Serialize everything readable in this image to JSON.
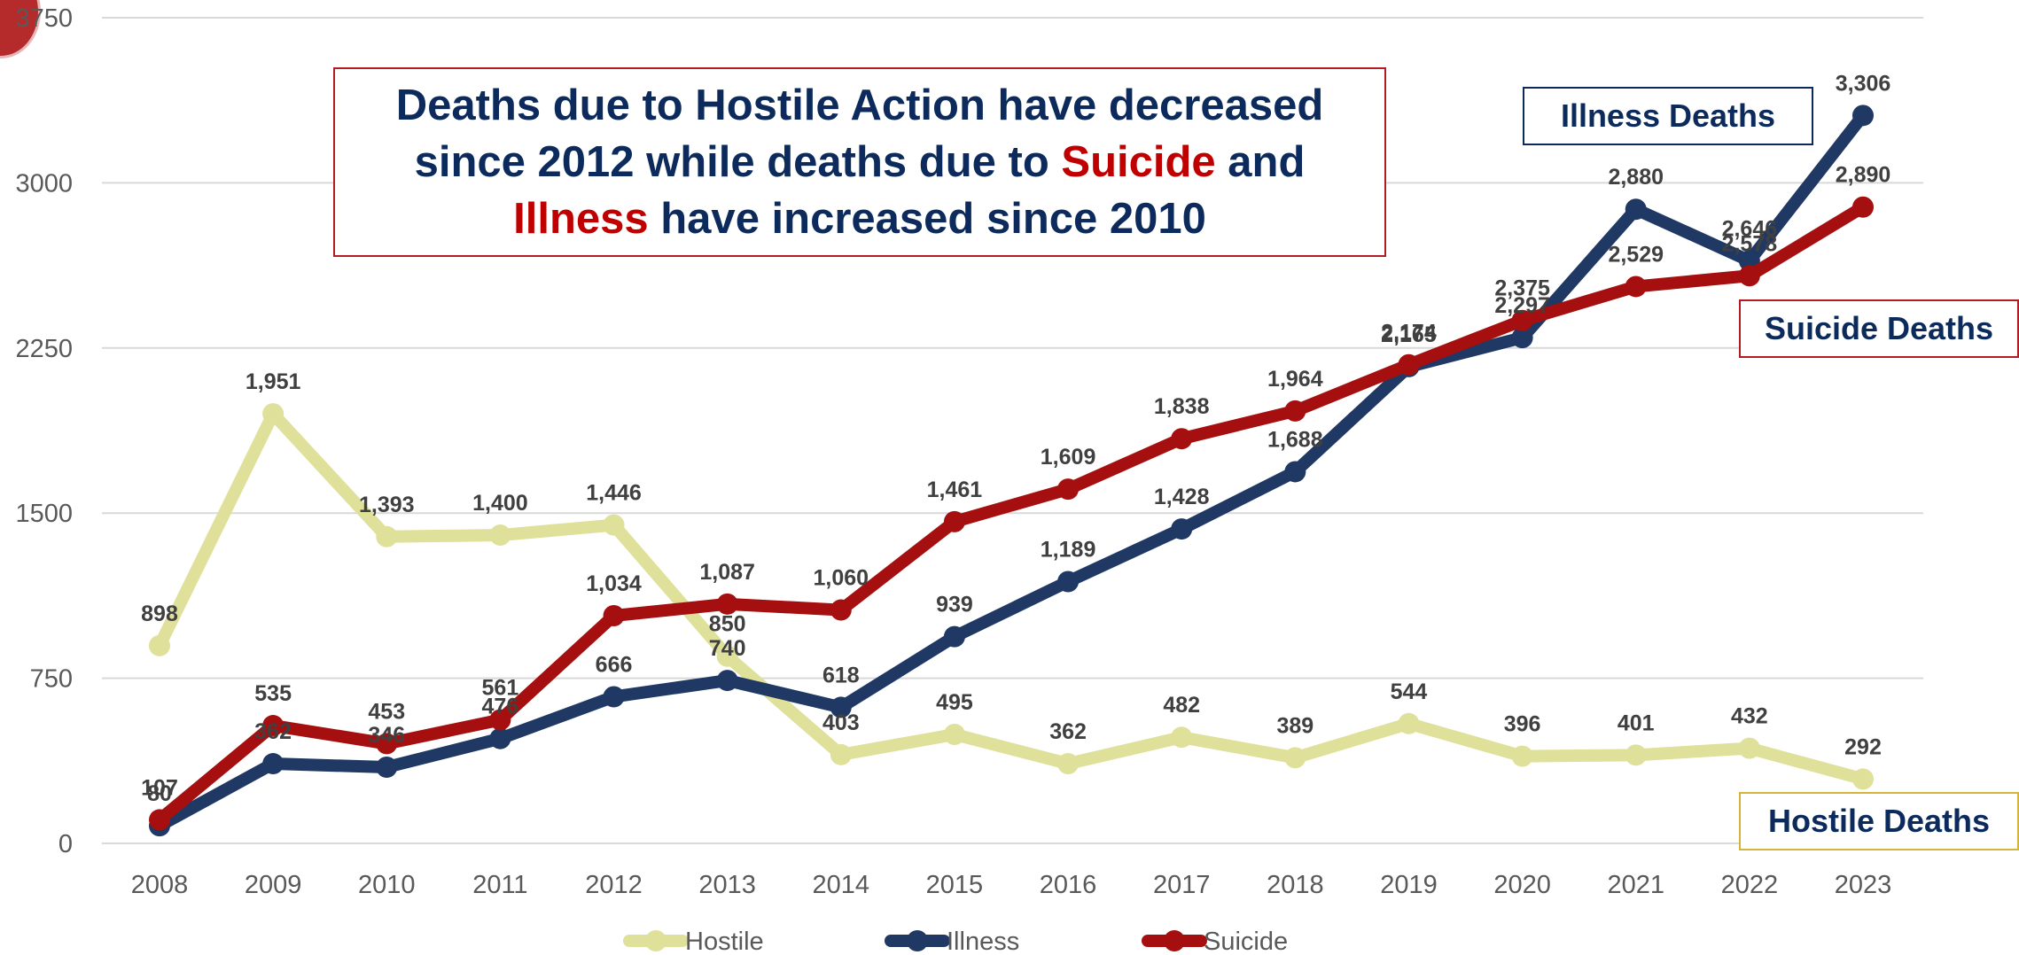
{
  "headline": {
    "line1": "Deaths due to Hostile Action have decreased",
    "line2_a": "since 2012 while deaths due to ",
    "line2_b": "Suicide",
    "line2_c": " and",
    "line3_a": "Illness",
    "line3_b": " have increased since 2010"
  },
  "tags": {
    "illness": "Illness Deaths",
    "suicide": "Suicide Deaths",
    "hostile": "Hostile Deaths"
  },
  "chart_data": {
    "type": "line",
    "x": [
      "2008",
      "2009",
      "2010",
      "2011",
      "2012",
      "2013",
      "2014",
      "2015",
      "2016",
      "2017",
      "2018",
      "2019",
      "2020",
      "2021",
      "2022",
      "2023"
    ],
    "y_ticks": [
      0,
      750,
      1500,
      2250,
      3000,
      3750
    ],
    "y_tick_labels": [
      "0",
      "750",
      "1500",
      "2250",
      "3000",
      "3750"
    ],
    "ylim": [
      0,
      3750
    ],
    "grid": true,
    "legend_position": "bottom",
    "series": [
      {
        "name": "Hostile",
        "color": "#dfe09a",
        "values": [
          898,
          1951,
          1393,
          1400,
          1446,
          850,
          403,
          495,
          362,
          482,
          389,
          544,
          396,
          401,
          432,
          292
        ],
        "labels": [
          "898",
          "1,951",
          "1,393",
          "1,400",
          "1,446",
          "850",
          "403",
          "495",
          "362",
          "482",
          "389",
          "544",
          "396",
          "401",
          "432",
          "292"
        ]
      },
      {
        "name": "Illness",
        "color": "#1f3864",
        "values": [
          80,
          362,
          346,
          476,
          666,
          740,
          618,
          939,
          1189,
          1428,
          1688,
          2165,
          2297,
          2880,
          2646,
          3306
        ],
        "labels": [
          "80",
          "362",
          "346",
          "476",
          "666",
          "740",
          "618",
          "939",
          "1,189",
          "1,428",
          "1,688",
          "2,165",
          "2,297",
          "2,880",
          "2,646",
          "3,306"
        ]
      },
      {
        "name": "Suicide",
        "color": "#a50f0f",
        "values": [
          107,
          535,
          453,
          561,
          1034,
          1087,
          1060,
          1461,
          1609,
          1838,
          1964,
          2174,
          2375,
          2529,
          2578,
          2890
        ],
        "labels": [
          "107",
          "535",
          "453",
          "561",
          "1,034",
          "1,087",
          "1,060",
          "1,461",
          "1,609",
          "1,838",
          "1,964",
          "2,174",
          "2,375",
          "2,529",
          "2,578",
          "2,890"
        ]
      }
    ]
  }
}
